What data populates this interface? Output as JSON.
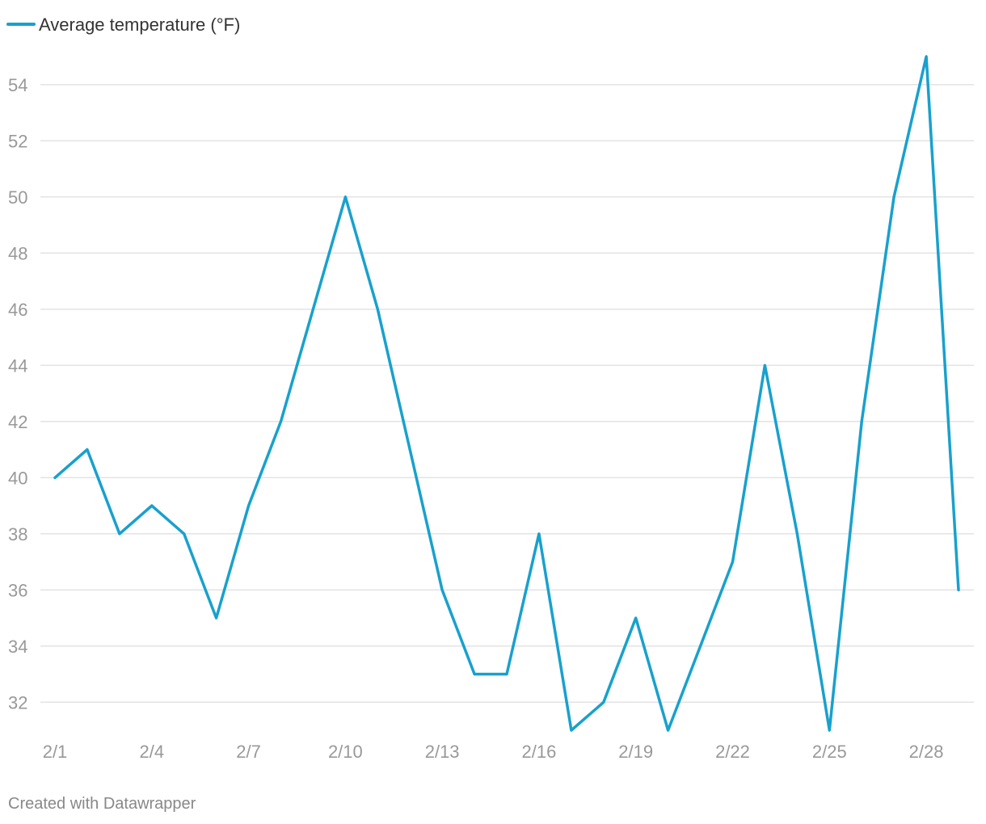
{
  "chart_data": {
    "type": "line",
    "title": "",
    "xlabel": "",
    "ylabel": "",
    "legend_position": "top-left",
    "grid": true,
    "x": [
      "2/1",
      "2/2",
      "2/3",
      "2/4",
      "2/5",
      "2/6",
      "2/7",
      "2/8",
      "2/9",
      "2/10",
      "2/11",
      "2/12",
      "2/13",
      "2/14",
      "2/15",
      "2/16",
      "2/17",
      "2/18",
      "2/19",
      "2/20",
      "2/21",
      "2/22",
      "2/23",
      "2/24",
      "2/25",
      "2/26",
      "2/27",
      "2/28",
      "2/29"
    ],
    "x_tick_labels": [
      "2/1",
      "2/4",
      "2/7",
      "2/10",
      "2/13",
      "2/16",
      "2/19",
      "2/22",
      "2/25",
      "2/28"
    ],
    "y_ticks": [
      32,
      34,
      36,
      38,
      40,
      42,
      44,
      46,
      48,
      50,
      52,
      54
    ],
    "ylim": [
      31,
      55
    ],
    "series": [
      {
        "name": "Average temperature (°F)",
        "color": "#18a1cd",
        "values": [
          40,
          41,
          38,
          39,
          38,
          35,
          39,
          42,
          46,
          50,
          46,
          41,
          36,
          33,
          33,
          38,
          31,
          32,
          35,
          31,
          34,
          37,
          44,
          38,
          31,
          42,
          50,
          55,
          36
        ]
      }
    ]
  },
  "colors": {
    "line": "#18a1cd",
    "grid": "#e3e3e3",
    "tick_text": "#999999",
    "legend_text": "#333333",
    "footer_text": "#888888"
  },
  "footer": {
    "credit": "Created with Datawrapper"
  }
}
